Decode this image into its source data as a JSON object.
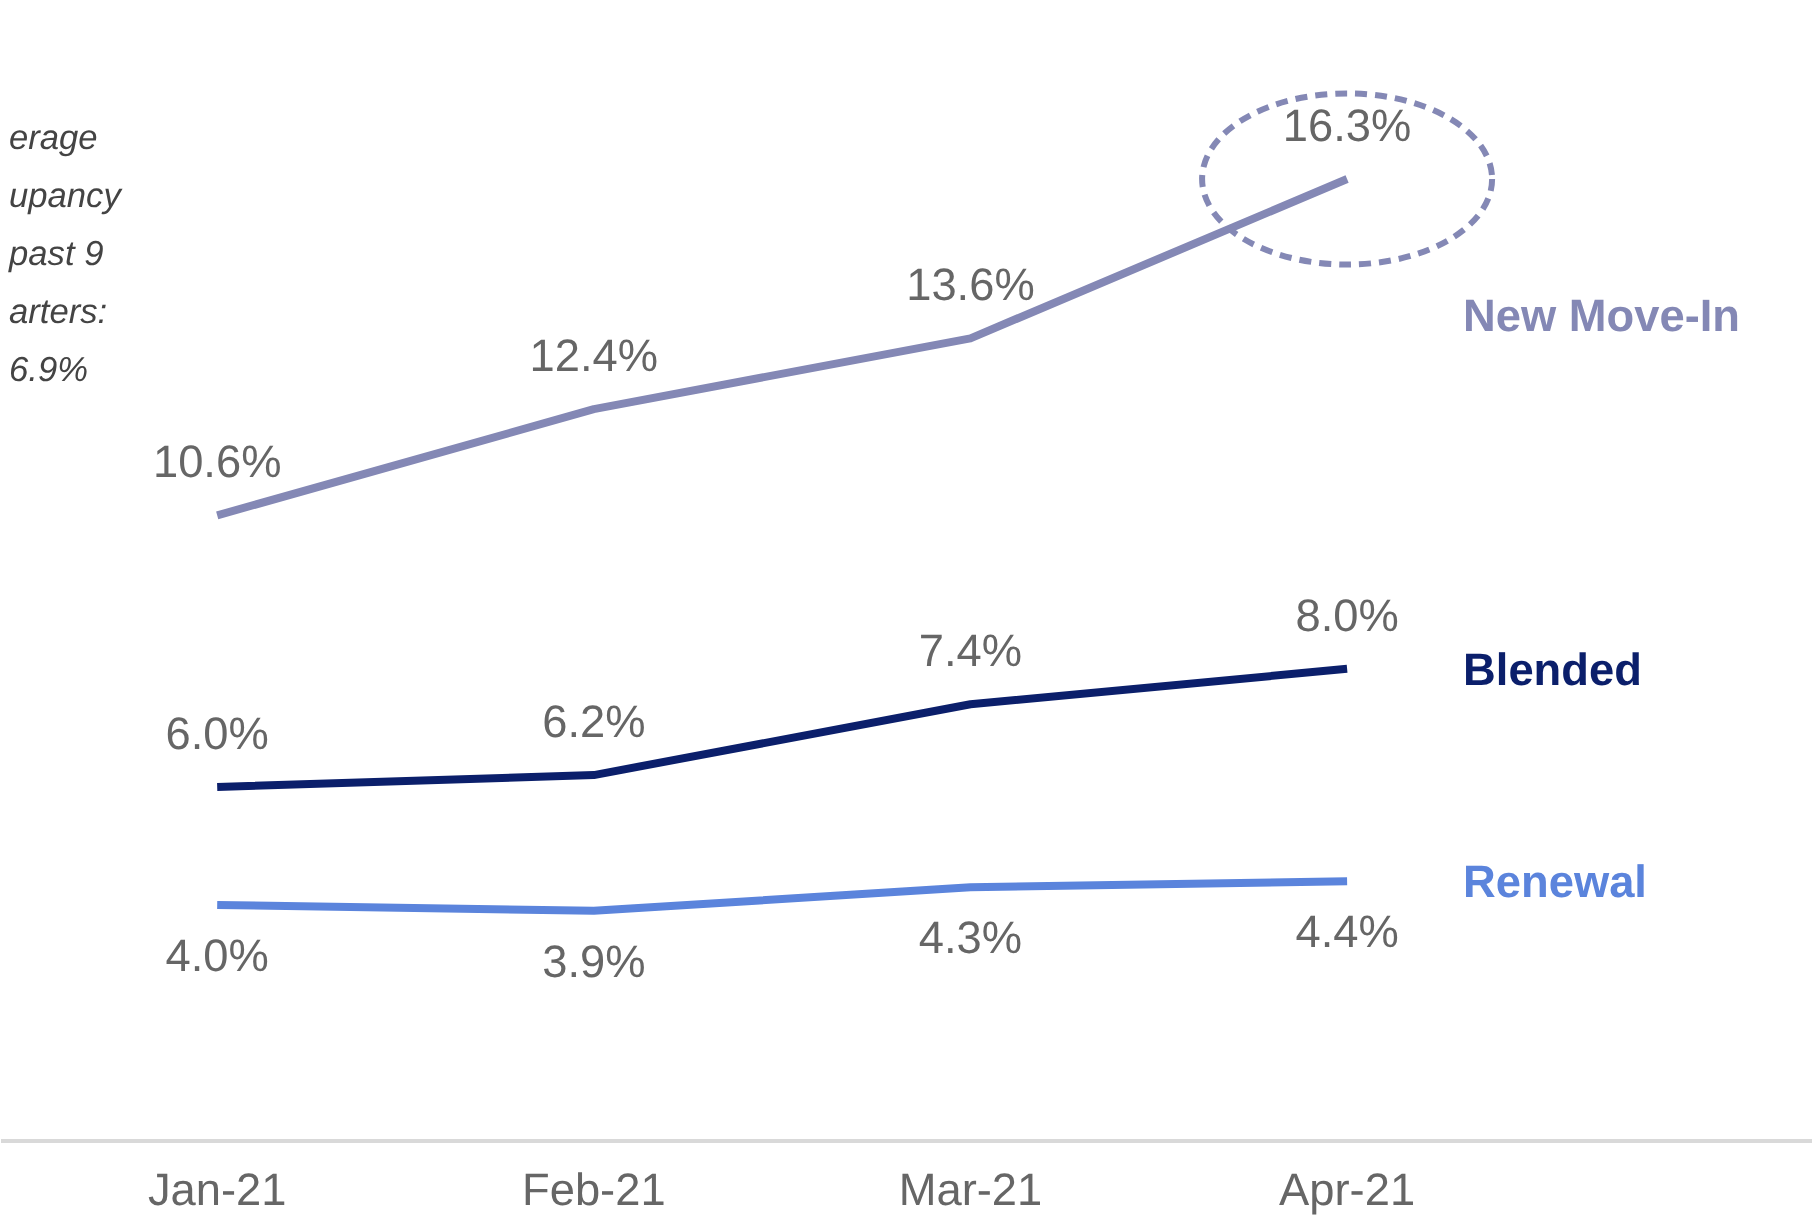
{
  "chart_data": {
    "type": "line",
    "categories": [
      "Jan-21",
      "Feb-21",
      "Mar-21",
      "Apr-21"
    ],
    "tick_labels": "x",
    "grid": false,
    "legend": false,
    "marker": "none",
    "line_style": "solid",
    "annotations": [
      "erage\nupancy\npast 9\narters:\n6.9%"
    ],
    "series": [
      {
        "name": "New Move-In",
        "color": "#8488b5",
        "values": [
          10.6,
          12.4,
          13.6,
          16.3
        ],
        "value_labels": [
          "10.6%",
          "12.4%",
          "13.6%",
          "16.3%"
        ]
      },
      {
        "name": "Blended",
        "color": "#0b1f6b",
        "values": [
          6.0,
          6.2,
          7.4,
          8.0
        ],
        "value_labels": [
          "6.0%",
          "6.2%",
          "7.4%",
          "8.0%"
        ]
      },
      {
        "name": "Renewal",
        "color": "#5b84dc",
        "values": [
          4.0,
          3.9,
          4.3,
          4.4
        ],
        "value_labels": [
          "4.0%",
          "3.9%",
          "4.3%",
          "4.4%"
        ]
      }
    ]
  }
}
